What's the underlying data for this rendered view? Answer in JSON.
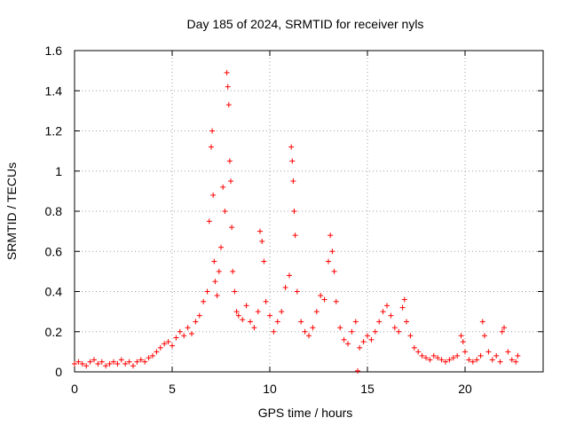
{
  "chart_data": {
    "type": "scatter",
    "title": "Day 185 of 2024, SRMTID for receiver nyls",
    "xlabel": "GPS time / hours",
    "ylabel": "SRMTID / TECUs",
    "xlim": [
      0,
      24
    ],
    "ylim": [
      0,
      1.6
    ],
    "xticks": [
      0,
      5,
      10,
      15,
      20
    ],
    "yticks": [
      0,
      0.2,
      0.4,
      0.6,
      0.8,
      1,
      1.2,
      1.4,
      1.6
    ],
    "ytick_labels": [
      "0",
      "0.2",
      "0.4",
      "0.6",
      "0.8",
      "1",
      "1.2",
      "1.4",
      "1.6"
    ],
    "grid": true,
    "marker": "+",
    "color": "#ff0000",
    "series": [
      {
        "name": "SRMTID",
        "x": [
          0.0,
          0.2,
          0.4,
          0.6,
          0.8,
          1.0,
          1.2,
          1.4,
          1.6,
          1.8,
          2.0,
          2.2,
          2.4,
          2.6,
          2.8,
          3.0,
          3.2,
          3.4,
          3.6,
          3.8,
          4.0,
          4.2,
          4.4,
          4.6,
          4.8,
          5.0,
          5.2,
          5.4,
          5.6,
          5.8,
          6.0,
          6.2,
          6.4,
          6.6,
          6.8,
          6.9,
          7.0,
          7.05,
          7.1,
          7.15,
          7.2,
          7.3,
          7.4,
          7.5,
          7.6,
          7.7,
          7.8,
          7.85,
          7.9,
          7.95,
          8.0,
          8.05,
          8.1,
          8.2,
          8.3,
          8.4,
          8.6,
          8.8,
          9.0,
          9.2,
          9.4,
          9.5,
          9.6,
          9.7,
          9.8,
          10.0,
          10.2,
          10.4,
          10.6,
          10.8,
          11.0,
          11.1,
          11.15,
          11.2,
          11.25,
          11.3,
          11.4,
          11.6,
          11.8,
          12.0,
          12.2,
          12.4,
          12.6,
          12.8,
          13.0,
          13.1,
          13.2,
          13.3,
          13.4,
          13.6,
          13.8,
          14.0,
          14.2,
          14.4,
          14.5,
          14.6,
          14.8,
          15.0,
          15.2,
          15.4,
          15.6,
          15.8,
          16.0,
          16.2,
          16.4,
          16.6,
          16.8,
          16.9,
          17.0,
          17.2,
          17.4,
          17.6,
          17.8,
          18.0,
          18.2,
          18.4,
          18.6,
          18.8,
          19.0,
          19.2,
          19.4,
          19.6,
          19.8,
          19.9,
          20.0,
          20.2,
          20.4,
          20.6,
          20.8,
          20.9,
          21.0,
          21.2,
          21.4,
          21.6,
          21.8,
          21.9,
          22.0,
          22.2,
          22.4,
          22.6,
          22.7
        ],
        "y": [
          0.04,
          0.05,
          0.04,
          0.03,
          0.05,
          0.06,
          0.04,
          0.05,
          0.03,
          0.04,
          0.05,
          0.04,
          0.06,
          0.04,
          0.05,
          0.03,
          0.05,
          0.06,
          0.05,
          0.07,
          0.08,
          0.1,
          0.12,
          0.14,
          0.15,
          0.13,
          0.17,
          0.2,
          0.18,
          0.22,
          0.19,
          0.25,
          0.28,
          0.35,
          0.4,
          0.75,
          1.12,
          1.2,
          0.88,
          0.55,
          0.45,
          0.38,
          0.5,
          0.62,
          0.92,
          0.8,
          1.49,
          1.42,
          1.33,
          1.05,
          0.95,
          0.72,
          0.5,
          0.4,
          0.3,
          0.28,
          0.26,
          0.33,
          0.25,
          0.22,
          0.3,
          0.7,
          0.65,
          0.55,
          0.35,
          0.28,
          0.2,
          0.25,
          0.3,
          0.42,
          0.48,
          1.12,
          1.05,
          0.95,
          0.8,
          0.68,
          0.4,
          0.25,
          0.2,
          0.18,
          0.22,
          0.3,
          0.38,
          0.36,
          0.55,
          0.68,
          0.6,
          0.5,
          0.35,
          0.22,
          0.16,
          0.14,
          0.2,
          0.25,
          0.005,
          0.12,
          0.15,
          0.18,
          0.16,
          0.2,
          0.25,
          0.3,
          0.33,
          0.28,
          0.22,
          0.2,
          0.32,
          0.36,
          0.25,
          0.18,
          0.12,
          0.1,
          0.08,
          0.07,
          0.06,
          0.08,
          0.07,
          0.06,
          0.05,
          0.06,
          0.07,
          0.08,
          0.18,
          0.15,
          0.1,
          0.06,
          0.05,
          0.06,
          0.08,
          0.25,
          0.18,
          0.1,
          0.06,
          0.08,
          0.05,
          0.2,
          0.22,
          0.1,
          0.06,
          0.05,
          0.08
        ]
      }
    ]
  }
}
